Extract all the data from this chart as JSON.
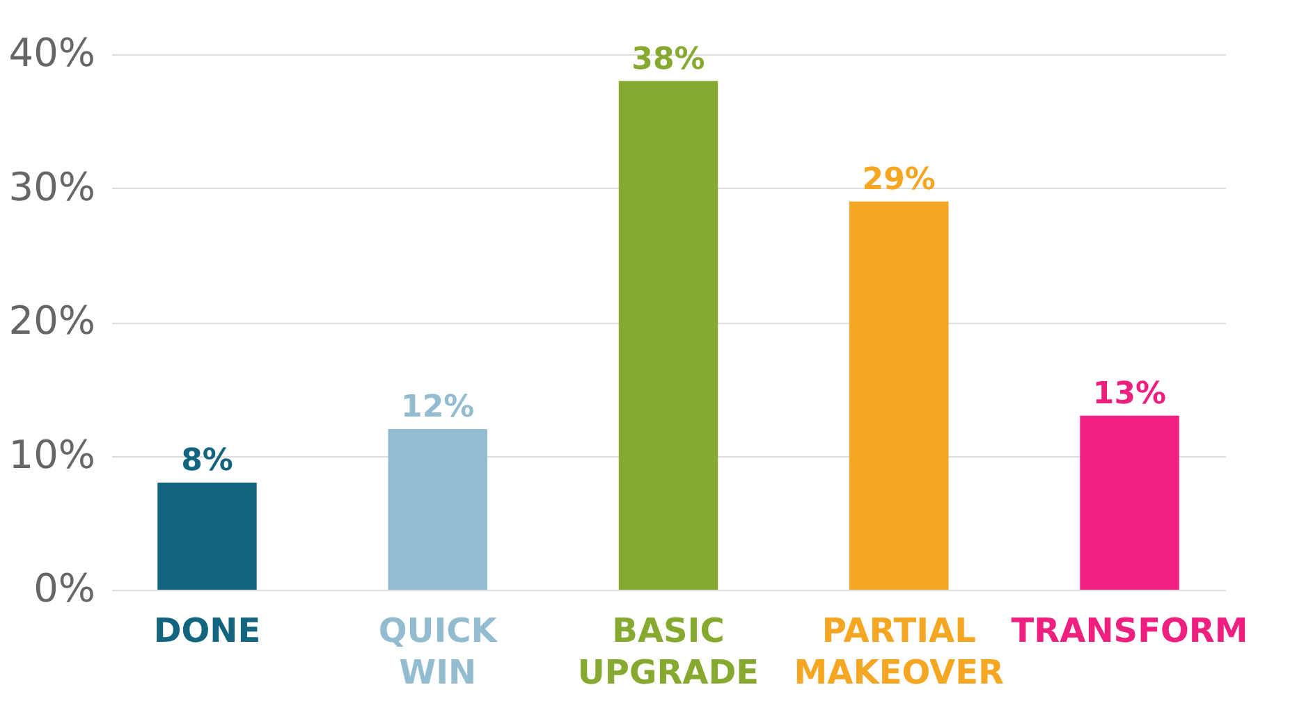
{
  "chart_data": {
    "type": "bar",
    "categories": [
      "DONE",
      "QUICK WIN",
      "BASIC UPGRADE",
      "PARTIAL MAKEOVER",
      "TRANSFORM"
    ],
    "values": [
      8,
      12,
      38,
      29,
      13
    ],
    "colors": [
      "#13657f",
      "#94bcd1",
      "#86aa2f",
      "#f5a623",
      "#ee1f7f"
    ],
    "value_labels": [
      "8%",
      "12%",
      "38%",
      "29%",
      "13%"
    ],
    "ylim": [
      0,
      40
    ],
    "yticks": [
      {
        "value": 0,
        "label": "0%"
      },
      {
        "value": 10,
        "label": "10%"
      },
      {
        "value": 20,
        "label": "20%"
      },
      {
        "value": 30,
        "label": "30%"
      },
      {
        "value": 40,
        "label": "40%"
      }
    ],
    "grid": "y"
  }
}
